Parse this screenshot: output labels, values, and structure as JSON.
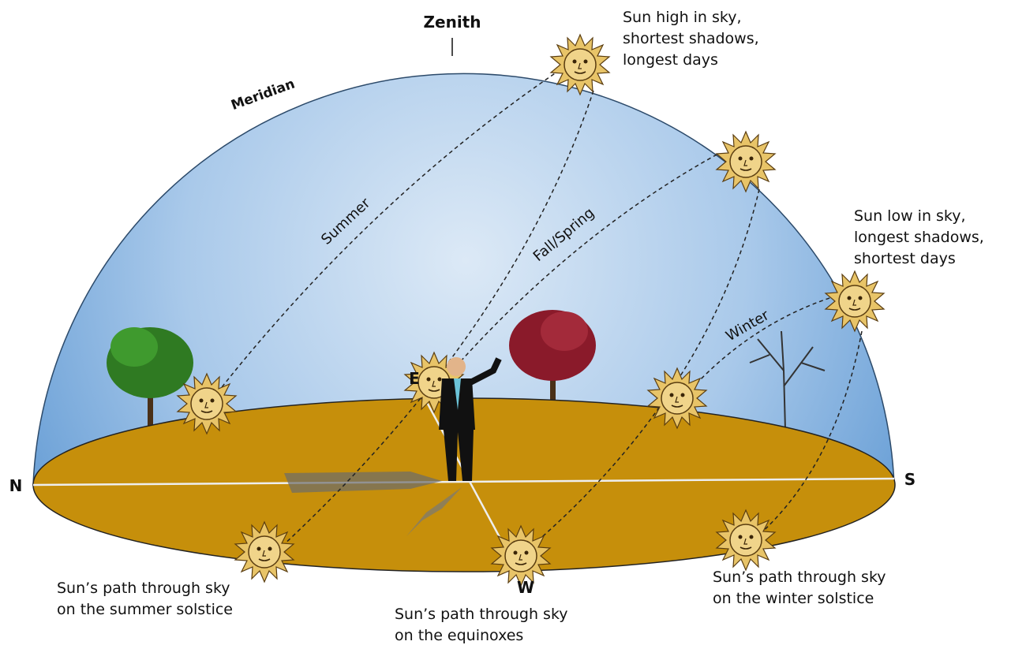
{
  "labels": {
    "zenith": "Zenith",
    "meridian": "Meridian",
    "north": "N",
    "south": "S",
    "east": "E",
    "west": "W"
  },
  "paths": [
    {
      "name": "Summer"
    },
    {
      "name": "Fall/Spring"
    },
    {
      "name": "Winter"
    }
  ],
  "annotations": {
    "sun_high": [
      "Sun high in sky,",
      "shortest shadows,",
      "longest days"
    ],
    "sun_low": [
      "Sun low in sky,",
      "longest shadows,",
      "shortest days"
    ],
    "summer_solstice": [
      "Sun’s path through sky",
      "on the summer solstice"
    ],
    "equinoxes": [
      "Sun’s path through sky",
      "on the equinoxes"
    ],
    "winter_solstice": [
      "Sun’s path through sky",
      "on the winter solstice"
    ]
  }
}
